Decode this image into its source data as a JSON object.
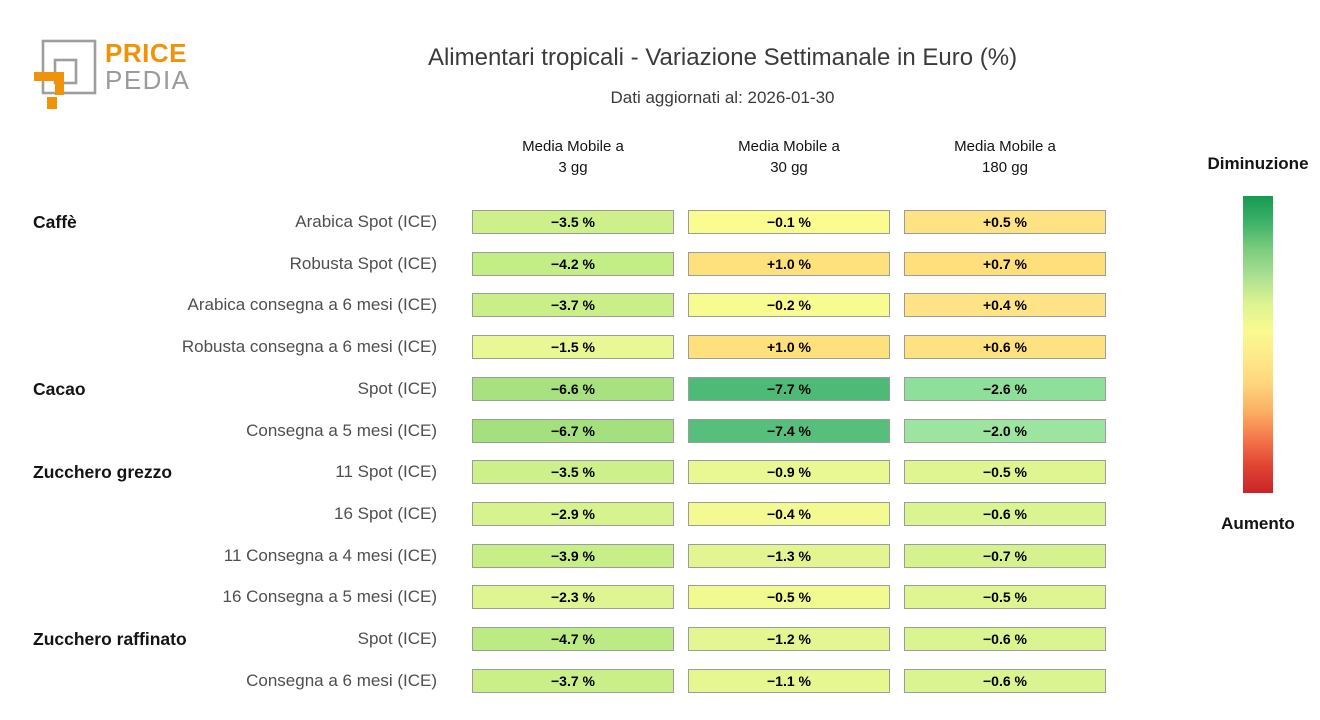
{
  "logo": {
    "line1": "PRICE",
    "line2": "PEDIA"
  },
  "header": {
    "title": "Alimentari tropicali - Variazione Settimanale in Euro (%)",
    "subtitle": "Dati aggiornati al: 2026-01-30"
  },
  "columns": [
    {
      "line1": "Media Mobile a",
      "line2": "3 gg"
    },
    {
      "line1": "Media Mobile a",
      "line2": "30 gg"
    },
    {
      "line1": "Media Mobile a",
      "line2": "180 gg"
    }
  ],
  "rows": [
    {
      "category": "Caffè",
      "label": "Arabica Spot (ICE)",
      "cells": [
        {
          "text": "−3.5 %",
          "color": "#cdf08b"
        },
        {
          "text": "−0.1 %",
          "color": "#fbfc90"
        },
        {
          "text": "+0.5 %",
          "color": "#fee283"
        }
      ]
    },
    {
      "category": "",
      "label": "Robusta Spot (ICE)",
      "cells": [
        {
          "text": "−4.2 %",
          "color": "#c3ed85"
        },
        {
          "text": "+1.0 %",
          "color": "#fee17c"
        },
        {
          "text": "+0.7 %",
          "color": "#fedf7b"
        }
      ]
    },
    {
      "category": "",
      "label": "Arabica consegna a 6 mesi (ICE)",
      "cells": [
        {
          "text": "−3.7 %",
          "color": "#caef88"
        },
        {
          "text": "−0.2 %",
          "color": "#f8fb90"
        },
        {
          "text": "+0.4 %",
          "color": "#fee486"
        }
      ]
    },
    {
      "category": "",
      "label": "Robusta consegna a 6 mesi (ICE)",
      "cells": [
        {
          "text": "−1.5 %",
          "color": "#e9f894"
        },
        {
          "text": "+1.0 %",
          "color": "#fee17c"
        },
        {
          "text": "+0.6 %",
          "color": "#fee181"
        }
      ]
    },
    {
      "category": "Cacao",
      "label": "Spot (ICE)",
      "cells": [
        {
          "text": "−6.6 %",
          "color": "#a7e180"
        },
        {
          "text": "−7.7 %",
          "color": "#4eba77"
        },
        {
          "text": "−2.6 %",
          "color": "#8edf9a"
        }
      ]
    },
    {
      "category": "",
      "label": "Consegna a 5 mesi (ICE)",
      "cells": [
        {
          "text": "−6.7 %",
          "color": "#a5e07f"
        },
        {
          "text": "−7.4 %",
          "color": "#57bf7c"
        },
        {
          "text": "−2.0 %",
          "color": "#9ce4a0"
        }
      ]
    },
    {
      "category": "Zucchero grezzo",
      "label": "11 Spot (ICE)",
      "cells": [
        {
          "text": "−3.5 %",
          "color": "#cdf08b"
        },
        {
          "text": "−0.9 %",
          "color": "#eaf893"
        },
        {
          "text": "−0.5 %",
          "color": "#def592"
        }
      ]
    },
    {
      "category": "",
      "label": "16 Spot (ICE)",
      "cells": [
        {
          "text": "−2.9 %",
          "color": "#d7f38e"
        },
        {
          "text": "−0.4 %",
          "color": "#f3fa92"
        },
        {
          "text": "−0.6 %",
          "color": "#d9f490"
        }
      ]
    },
    {
      "category": "",
      "label": "11 Consegna a 4 mesi (ICE)",
      "cells": [
        {
          "text": "−3.9 %",
          "color": "#c8ef87"
        },
        {
          "text": "−1.3 %",
          "color": "#e2f591"
        },
        {
          "text": "−0.7 %",
          "color": "#d5f28e"
        }
      ]
    },
    {
      "category": "",
      "label": "16 Consegna a 5 mesi (ICE)",
      "cells": [
        {
          "text": "−2.3 %",
          "color": "#def592"
        },
        {
          "text": "−0.5 %",
          "color": "#f1fa91"
        },
        {
          "text": "−0.5 %",
          "color": "#def592"
        }
      ]
    },
    {
      "category": "Zucchero raffinato",
      "label": "Spot (ICE)",
      "cells": [
        {
          "text": "−4.7 %",
          "color": "#bcea83"
        },
        {
          "text": "−1.2 %",
          "color": "#e4f692"
        },
        {
          "text": "−0.6 %",
          "color": "#d9f490"
        }
      ]
    },
    {
      "category": "",
      "label": "Consegna a 6 mesi (ICE)",
      "cells": [
        {
          "text": "−3.7 %",
          "color": "#caef88"
        },
        {
          "text": "−1.1 %",
          "color": "#e6f792"
        },
        {
          "text": "−0.6 %",
          "color": "#d9f490"
        }
      ]
    }
  ],
  "legend": {
    "top_label": "Diminuzione",
    "bottom_label": "Aumento",
    "gradient": [
      "#169a52",
      "#3fb269",
      "#7ccd7f",
      "#abe093",
      "#ddf392",
      "#f9fa90",
      "#fee98a",
      "#fdd47c",
      "#fbae62",
      "#f4764b",
      "#e04432",
      "#c82428"
    ]
  },
  "colors": {
    "brand_orange": "#ef9309",
    "logo_gray": "#9e9e9e",
    "cell_border": "#9c9c9c"
  },
  "chart_data": {
    "type": "heatmap",
    "title": "Alimentari tropicali - Variazione Settimanale in Euro (%)",
    "subtitle": "Dati aggiornati al: 2026-01-30",
    "columns": [
      "Media Mobile a 3 gg",
      "Media Mobile a 30 gg",
      "Media Mobile a 180 gg"
    ],
    "row_groups": [
      {
        "name": "Caffè",
        "rows": [
          "Arabica Spot (ICE)",
          "Robusta Spot (ICE)",
          "Arabica consegna a 6 mesi (ICE)",
          "Robusta consegna a 6 mesi (ICE)"
        ]
      },
      {
        "name": "Cacao",
        "rows": [
          "Spot (ICE)",
          "Consegna a 5 mesi (ICE)"
        ]
      },
      {
        "name": "Zucchero grezzo",
        "rows": [
          "11 Spot (ICE)",
          "16 Spot (ICE)",
          "11 Consegna a 4 mesi (ICE)",
          "16 Consegna a 5 mesi (ICE)"
        ]
      },
      {
        "name": "Zucchero raffinato",
        "rows": [
          "Spot (ICE)",
          "Consegna a 6 mesi (ICE)"
        ]
      }
    ],
    "values_pct": [
      [
        -3.5,
        -0.1,
        0.5
      ],
      [
        -4.2,
        1.0,
        0.7
      ],
      [
        -3.7,
        -0.2,
        0.4
      ],
      [
        -1.5,
        1.0,
        0.6
      ],
      [
        -6.6,
        -7.7,
        -2.6
      ],
      [
        -6.7,
        -7.4,
        -2.0
      ],
      [
        -3.5,
        -0.9,
        -0.5
      ],
      [
        -2.9,
        -0.4,
        -0.6
      ],
      [
        -3.9,
        -1.3,
        -0.7
      ],
      [
        -2.3,
        -0.5,
        -0.5
      ],
      [
        -4.7,
        -1.2,
        -0.6
      ],
      [
        -3.7,
        -1.1,
        -0.6
      ]
    ],
    "legend": {
      "top": "Diminuzione",
      "bottom": "Aumento",
      "meaning": "green = decrease, red = increase"
    }
  }
}
